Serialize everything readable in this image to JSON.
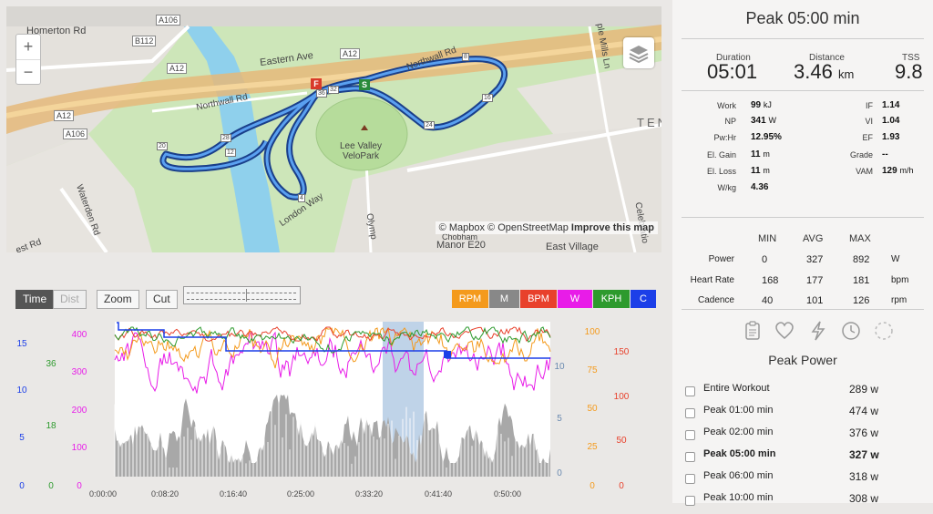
{
  "map": {
    "attribution": {
      "mapbox": "© Mapbox",
      "osm": "© OpenStreetMap",
      "improve": "Improve this map"
    },
    "labels": {
      "homerton": "Homerton Rd",
      "eastern_ave": "Eastern Ave",
      "northwall_top": "Northwall Rd",
      "northwall_left": "Northwall Rd",
      "a106_top": "A106",
      "a106_left": "A106",
      "b112": "B112",
      "a12_left": "A12",
      "a12_mid": "A12",
      "a12_bot": "A12",
      "velopark": "Lee Valley\nVeloPark",
      "london_way": "London Way",
      "waterden": "Waterden Rd",
      "west_rd": "est Rd",
      "manor": "Manor E20",
      "east_village": "East Village",
      "olympic": "Olymp",
      "mills_ln": "ple Mills Ln",
      "celebration": "Celebratio",
      "chobham": "Chobham",
      "ten": "TEN"
    },
    "markers": [
      "F",
      "S",
      "36",
      "32",
      "8",
      "16",
      "24",
      "20",
      "28",
      "12",
      "4"
    ]
  },
  "toolbar": {
    "time": "Time",
    "dist": "Dist",
    "zoom": "Zoom",
    "cut": "Cut"
  },
  "series_buttons": [
    {
      "label": "RPM",
      "color": "#f49a1c"
    },
    {
      "label": "M",
      "color": "#888888"
    },
    {
      "label": "BPM",
      "color": "#e8412c"
    },
    {
      "label": "W",
      "color": "#e81ce8"
    },
    {
      "label": "KPH",
      "color": "#2d9a2d"
    },
    {
      "label": "C",
      "color": "#1c3fe8"
    }
  ],
  "chart_data": {
    "type": "line",
    "x_ticks": [
      "0:00:00",
      "0:08:20",
      "0:16:40",
      "0:25:00",
      "0:33:20",
      "0:41:40",
      "0:50:00"
    ],
    "axes": {
      "left_blue": [
        "15",
        "10",
        "5",
        "0"
      ],
      "left_green": [
        "36",
        "18",
        "0"
      ],
      "left_magenta": [
        "400",
        "300",
        "200",
        "100",
        "0"
      ],
      "right_steel": [
        "10",
        "5",
        "0"
      ],
      "right_orange": [
        "100",
        "75",
        "50",
        "25",
        "0"
      ],
      "right_red": [
        "150",
        "100",
        "50",
        "0"
      ]
    },
    "series": [
      {
        "name": "W",
        "color": "#e81ce8"
      },
      {
        "name": "BPM",
        "color": "#e8412c"
      },
      {
        "name": "RPM",
        "color": "#f49a1c"
      },
      {
        "name": "KPH",
        "color": "#2d9a2d"
      },
      {
        "name": "C",
        "color": "#1c3fe8"
      },
      {
        "name": "M",
        "color": "#888888"
      }
    ],
    "selection_range": [
      "0:33:20",
      "0:38:20"
    ]
  },
  "panel": {
    "title": "Peak 05:00 min",
    "summary": [
      {
        "label": "Duration",
        "value": "05:01",
        "unit": ""
      },
      {
        "label": "Distance",
        "value": "3.46",
        "unit": "km"
      },
      {
        "label": "TSS",
        "value": "9.8",
        "unit": ""
      }
    ],
    "metrics_left": [
      {
        "label": "Work",
        "value": "99",
        "unit": "kJ"
      },
      {
        "label": "NP",
        "value": "341",
        "unit": "W"
      },
      {
        "label": "Pw:Hr",
        "value": "12.95%",
        "unit": ""
      },
      {
        "label": "El. Gain",
        "value": "11",
        "unit": "m"
      },
      {
        "label": "El. Loss",
        "value": "11",
        "unit": "m"
      },
      {
        "label": "W/kg",
        "value": "4.36",
        "unit": ""
      }
    ],
    "metrics_right": [
      {
        "label": "IF",
        "value": "1.14",
        "unit": ""
      },
      {
        "label": "VI",
        "value": "1.04",
        "unit": ""
      },
      {
        "label": "EF",
        "value": "1.93",
        "unit": ""
      },
      {
        "label": "Grade",
        "value": "--",
        "unit": ""
      },
      {
        "label": "VAM",
        "value": "129",
        "unit": "m/h"
      }
    ],
    "mma_headers": [
      "MIN",
      "AVG",
      "MAX"
    ],
    "mma_rows": [
      {
        "label": "Power",
        "min": "0",
        "avg": "327",
        "max": "892",
        "unit": "W"
      },
      {
        "label": "Heart Rate",
        "min": "168",
        "avg": "177",
        "max": "181",
        "unit": "bpm"
      },
      {
        "label": "Cadence",
        "min": "40",
        "avg": "101",
        "max": "126",
        "unit": "rpm"
      }
    ],
    "peak_power_title": "Peak Power",
    "peak_power_rows": [
      {
        "label": "Entire Workout",
        "value": "289",
        "unit": "w"
      },
      {
        "label": "Peak 01:00 min",
        "value": "474",
        "unit": "w"
      },
      {
        "label": "Peak 02:00 min",
        "value": "376",
        "unit": "w"
      },
      {
        "label": "Peak 05:00 min",
        "value": "327",
        "unit": "w"
      },
      {
        "label": "Peak 06:00 min",
        "value": "318",
        "unit": "w"
      },
      {
        "label": "Peak 10:00 min",
        "value": "308",
        "unit": "w"
      }
    ]
  }
}
